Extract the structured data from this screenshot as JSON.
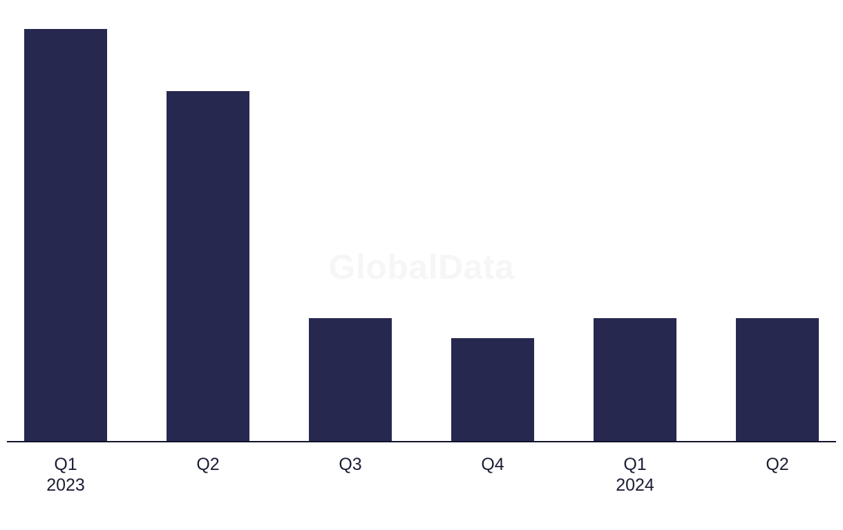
{
  "chart_data": {
    "type": "bar",
    "categories": [
      "Q1 2023",
      "Q2 2023",
      "Q3 2023",
      "Q4 2023",
      "Q1 2024",
      "Q2 2024"
    ],
    "x_tick_labels": [
      [
        "Q1",
        "2023"
      ],
      [
        "Q2"
      ],
      [
        "Q3"
      ],
      [
        "Q4"
      ],
      [
        "Q1",
        "2024"
      ],
      [
        "Q2"
      ]
    ],
    "values": [
      100,
      85,
      30,
      25,
      30,
      30
    ],
    "title": "",
    "xlabel": "",
    "ylabel": "",
    "ylim": [
      0,
      107
    ],
    "grid": false,
    "legend": false,
    "y_axis_shown": false,
    "watermark": "GlobalData",
    "colors": {
      "bar_fill": "#272850",
      "axis_line": "#101128",
      "tick_label": "#1a1c34",
      "watermark": "#f6f6f7",
      "background": "#ffffff"
    }
  }
}
